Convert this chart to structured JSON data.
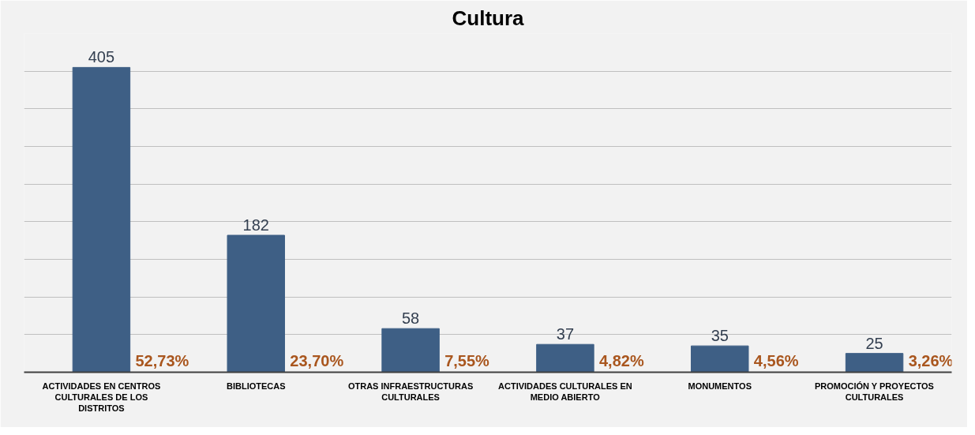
{
  "chart_data": {
    "type": "bar",
    "title": "Cultura",
    "categories": [
      "ACTIVIDADES EN CENTROS CULTURALES DE LOS DISTRITOS",
      "BIBLIOTECAS",
      "OTRAS INFRAESTRUCTURAS CULTURALES",
      "ACTIVIDADES CULTURALES EN MEDIO ABIERTO",
      "MONUMENTOS",
      "PROMOCIÓN Y PROYECTOS CULTURALES"
    ],
    "values": [
      405,
      182,
      58,
      37,
      35,
      25
    ],
    "color": "#3e5f85",
    "data_labels": true,
    "ylim": [
      0,
      450
    ],
    "yticks": [
      {
        "value": 0,
        "label": null
      },
      {
        "value": 50,
        "label": null
      },
      {
        "value": 100,
        "label": null
      },
      {
        "value": 150,
        "label": null
      },
      {
        "value": 200,
        "label": null
      },
      {
        "value": 250,
        "label": null
      },
      {
        "value": 300,
        "label": null
      },
      {
        "value": 350,
        "label": null
      },
      {
        "value": 400,
        "label": null
      },
      {
        "value": 450,
        "label": null
      }
    ],
    "tick_labels": "x",
    "grid": "y",
    "annotations": [
      {
        "text": "52,73%",
        "x": "ACTIVIDADES EN CENTROS CULTURALES DE LOS DISTRITOS",
        "y": 0
      },
      {
        "text": "23,70%",
        "x": "BIBLIOTECAS",
        "y": 0
      },
      {
        "text": "7,55%",
        "x": "OTRAS INFRAESTRUCTURAS CULTURALES",
        "y": 0
      },
      {
        "text": "4,82%",
        "x": "ACTIVIDADES CULTURALES EN MEDIO ABIERTO",
        "y": 0
      },
      {
        "text": "4,56%",
        "x": "MONUMENTOS",
        "y": 0
      },
      {
        "text": "3,26%",
        "x": "PROMOCIÓN Y PROYECTOS CULTURALES",
        "y": 0
      }
    ]
  }
}
